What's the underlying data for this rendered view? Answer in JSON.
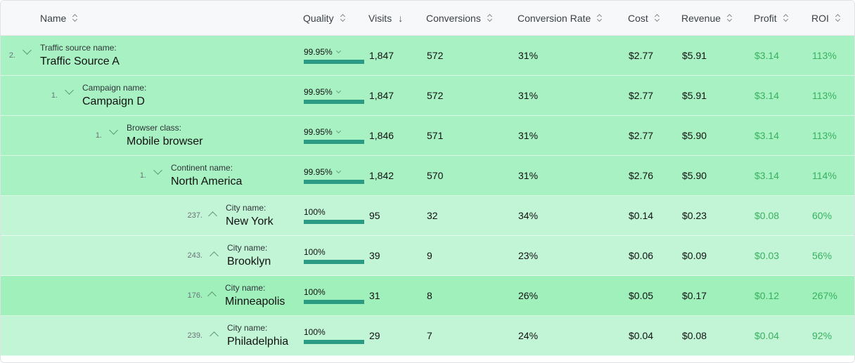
{
  "colors": {
    "header_bg": "#f7f8f9",
    "row_dark": "#a8f1c3",
    "row_light": "#c1f5d6",
    "row_highlight": "#9ff0bb",
    "quality_bar": "#2c9b84",
    "positive": "#38b15f"
  },
  "header": {
    "name": "Name",
    "quality": "Quality",
    "visits": "Visits",
    "conversions": "Conversions",
    "conversion_rate": "Conversion Rate",
    "cost": "Cost",
    "revenue": "Revenue",
    "profit": "Profit",
    "roi": "ROI"
  },
  "rows": [
    {
      "index": "2.",
      "expanded": true,
      "label": "Traffic source name:",
      "name": "Traffic Source A",
      "quality": "99.95%",
      "quality_chevron": true,
      "quality_value": 0.9995,
      "visits": "1,847",
      "conversions": "572",
      "conversion_rate": "31%",
      "cost": "$2.77",
      "revenue": "$5.91",
      "profit": "$3.14",
      "roi": "113%"
    },
    {
      "index": "1.",
      "expanded": true,
      "label": "Campaign name:",
      "name": "Campaign D",
      "quality": "99.95%",
      "quality_chevron": true,
      "quality_value": 0.9995,
      "visits": "1,847",
      "conversions": "572",
      "conversion_rate": "31%",
      "cost": "$2.77",
      "revenue": "$5.91",
      "profit": "$3.14",
      "roi": "113%"
    },
    {
      "index": "1.",
      "expanded": true,
      "label": "Browser class:",
      "name": "Mobile browser",
      "quality": "99.95%",
      "quality_chevron": true,
      "quality_value": 0.9995,
      "visits": "1,846",
      "conversions": "571",
      "conversion_rate": "31%",
      "cost": "$2.77",
      "revenue": "$5.90",
      "profit": "$3.14",
      "roi": "113%"
    },
    {
      "index": "1.",
      "expanded": true,
      "label": "Continent name:",
      "name": "North America",
      "quality": "99.95%",
      "quality_chevron": true,
      "quality_value": 0.9995,
      "visits": "1,842",
      "conversions": "570",
      "conversion_rate": "31%",
      "cost": "$2.76",
      "revenue": "$5.90",
      "profit": "$3.14",
      "roi": "114%"
    },
    {
      "index": "237.",
      "expanded": false,
      "label": "City name:",
      "name": "New York",
      "quality": "100%",
      "quality_chevron": false,
      "quality_value": 1,
      "visits": "95",
      "conversions": "32",
      "conversion_rate": "34%",
      "cost": "$0.14",
      "revenue": "$0.23",
      "profit": "$0.08",
      "roi": "60%"
    },
    {
      "index": "243.",
      "expanded": false,
      "label": "City name:",
      "name": "Brooklyn",
      "quality": "100%",
      "quality_chevron": false,
      "quality_value": 1,
      "visits": "39",
      "conversions": "9",
      "conversion_rate": "23%",
      "cost": "$0.06",
      "revenue": "$0.09",
      "profit": "$0.03",
      "roi": "56%"
    },
    {
      "index": "176.",
      "expanded": false,
      "label": "City name:",
      "name": "Minneapolis",
      "quality": "100%",
      "quality_chevron": false,
      "quality_value": 1,
      "visits": "31",
      "conversions": "8",
      "conversion_rate": "26%",
      "cost": "$0.05",
      "revenue": "$0.17",
      "profit": "$0.12",
      "roi": "267%"
    },
    {
      "index": "239.",
      "expanded": false,
      "label": "City name:",
      "name": "Philadelphia",
      "quality": "100%",
      "quality_chevron": false,
      "quality_value": 1,
      "visits": "29",
      "conversions": "7",
      "conversion_rate": "24%",
      "cost": "$0.04",
      "revenue": "$0.08",
      "profit": "$0.04",
      "roi": "92%"
    }
  ]
}
